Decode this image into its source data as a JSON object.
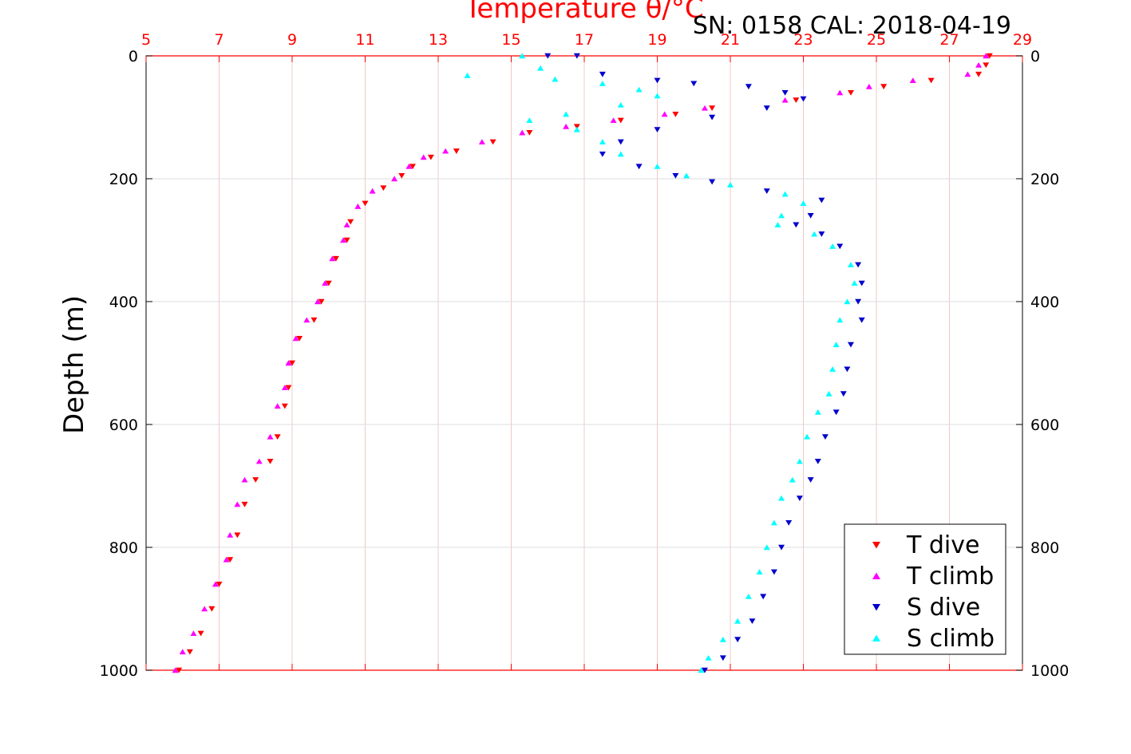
{
  "header": {
    "x_title": "Temperature θ/°C",
    "sn_cal": "SN: 0158  CAL: 2018-04-19"
  },
  "colors": {
    "T dive": "#ff0000",
    "T climb": "#ff00ff",
    "S dive": "#0000cc",
    "S climb": "#00ffff",
    "axis_top": "#ff0000"
  },
  "chart_data": {
    "type": "scatter",
    "title": "Temperature θ/°C",
    "xlabel": "Temperature θ/°C",
    "ylabel": "Depth (m)",
    "xlim": [
      5,
      29
    ],
    "ylim": [
      1000,
      0
    ],
    "xticks": [
      "5",
      "7",
      "9",
      "11",
      "13",
      "15",
      "17",
      "19",
      "21",
      "23",
      "25",
      "27",
      "29"
    ],
    "yticks": [
      "0",
      "200",
      "400",
      "600",
      "800",
      "1000"
    ],
    "grid": true,
    "legend_position": "bottom-right",
    "series": [
      {
        "name": "T dive",
        "marker": "triangle-down",
        "points": [
          [
            28.1,
            0
          ],
          [
            28.0,
            15
          ],
          [
            27.8,
            30
          ],
          [
            26.5,
            40
          ],
          [
            25.2,
            50
          ],
          [
            24.3,
            60
          ],
          [
            22.8,
            72
          ],
          [
            20.5,
            85
          ],
          [
            19.5,
            95
          ],
          [
            18.0,
            105
          ],
          [
            16.8,
            115
          ],
          [
            15.5,
            125
          ],
          [
            14.5,
            140
          ],
          [
            13.5,
            155
          ],
          [
            12.8,
            165
          ],
          [
            12.3,
            180
          ],
          [
            12.0,
            195
          ],
          [
            11.5,
            215
          ],
          [
            11.0,
            240
          ],
          [
            10.6,
            270
          ],
          [
            10.5,
            300
          ],
          [
            10.2,
            330
          ],
          [
            10.0,
            370
          ],
          [
            9.8,
            400
          ],
          [
            9.6,
            430
          ],
          [
            9.2,
            460
          ],
          [
            9.0,
            500
          ],
          [
            8.9,
            540
          ],
          [
            8.8,
            570
          ],
          [
            8.6,
            620
          ],
          [
            8.4,
            660
          ],
          [
            8.0,
            690
          ],
          [
            7.7,
            730
          ],
          [
            7.5,
            780
          ],
          [
            7.3,
            820
          ],
          [
            7.0,
            860
          ],
          [
            6.8,
            900
          ],
          [
            6.5,
            940
          ],
          [
            6.2,
            970
          ],
          [
            5.9,
            1000
          ]
        ]
      },
      {
        "name": "T climb",
        "marker": "triangle-up",
        "points": [
          [
            28.0,
            0
          ],
          [
            27.8,
            15
          ],
          [
            27.5,
            30
          ],
          [
            26.0,
            40
          ],
          [
            24.8,
            50
          ],
          [
            24.0,
            60
          ],
          [
            22.5,
            72
          ],
          [
            20.3,
            85
          ],
          [
            19.2,
            95
          ],
          [
            17.8,
            105
          ],
          [
            16.5,
            115
          ],
          [
            15.3,
            125
          ],
          [
            14.2,
            140
          ],
          [
            13.2,
            155
          ],
          [
            12.6,
            165
          ],
          [
            12.2,
            180
          ],
          [
            11.8,
            200
          ],
          [
            11.2,
            220
          ],
          [
            10.8,
            245
          ],
          [
            10.5,
            275
          ],
          [
            10.4,
            300
          ],
          [
            10.1,
            330
          ],
          [
            9.9,
            370
          ],
          [
            9.7,
            400
          ],
          [
            9.4,
            430
          ],
          [
            9.1,
            460
          ],
          [
            8.9,
            500
          ],
          [
            8.8,
            540
          ],
          [
            8.6,
            570
          ],
          [
            8.4,
            620
          ],
          [
            8.1,
            660
          ],
          [
            7.7,
            690
          ],
          [
            7.5,
            730
          ],
          [
            7.3,
            780
          ],
          [
            7.2,
            820
          ],
          [
            6.9,
            860
          ],
          [
            6.6,
            900
          ],
          [
            6.3,
            940
          ],
          [
            6.0,
            970
          ],
          [
            5.8,
            1000
          ]
        ]
      },
      {
        "name": "S dive",
        "marker": "triangle-down",
        "points": [
          [
            16.0,
            0
          ],
          [
            16.8,
            0
          ],
          [
            17.5,
            30
          ],
          [
            19.0,
            40
          ],
          [
            20.0,
            45
          ],
          [
            21.5,
            50
          ],
          [
            22.5,
            60
          ],
          [
            23.0,
            70
          ],
          [
            22.0,
            85
          ],
          [
            20.5,
            100
          ],
          [
            19.0,
            120
          ],
          [
            18.0,
            140
          ],
          [
            17.5,
            160
          ],
          [
            18.5,
            180
          ],
          [
            19.5,
            195
          ],
          [
            20.5,
            205
          ],
          [
            22.0,
            220
          ],
          [
            23.5,
            235
          ],
          [
            23.2,
            260
          ],
          [
            22.8,
            275
          ],
          [
            23.5,
            290
          ],
          [
            24.0,
            310
          ],
          [
            24.5,
            340
          ],
          [
            24.6,
            370
          ],
          [
            24.5,
            400
          ],
          [
            24.6,
            430
          ],
          [
            24.3,
            470
          ],
          [
            24.2,
            510
          ],
          [
            24.1,
            550
          ],
          [
            23.9,
            580
          ],
          [
            23.6,
            620
          ],
          [
            23.4,
            660
          ],
          [
            23.2,
            690
          ],
          [
            22.9,
            720
          ],
          [
            22.6,
            760
          ],
          [
            22.4,
            800
          ],
          [
            22.2,
            840
          ],
          [
            21.9,
            880
          ],
          [
            21.6,
            920
          ],
          [
            21.2,
            950
          ],
          [
            20.8,
            980
          ],
          [
            20.3,
            1000
          ]
        ]
      },
      {
        "name": "S climb",
        "marker": "triangle-up",
        "points": [
          [
            15.3,
            0
          ],
          [
            15.8,
            20
          ],
          [
            13.8,
            32
          ],
          [
            16.2,
            38
          ],
          [
            17.5,
            45
          ],
          [
            18.5,
            55
          ],
          [
            19.0,
            65
          ],
          [
            18.0,
            80
          ],
          [
            16.5,
            95
          ],
          [
            15.5,
            105
          ],
          [
            16.8,
            120
          ],
          [
            17.5,
            140
          ],
          [
            18.0,
            160
          ],
          [
            19.0,
            180
          ],
          [
            19.8,
            195
          ],
          [
            21.0,
            210
          ],
          [
            22.5,
            225
          ],
          [
            23.0,
            240
          ],
          [
            22.4,
            260
          ],
          [
            22.3,
            275
          ],
          [
            23.3,
            290
          ],
          [
            23.8,
            310
          ],
          [
            24.3,
            340
          ],
          [
            24.4,
            370
          ],
          [
            24.2,
            400
          ],
          [
            24.0,
            430
          ],
          [
            23.9,
            470
          ],
          [
            23.8,
            510
          ],
          [
            23.7,
            550
          ],
          [
            23.4,
            580
          ],
          [
            23.1,
            620
          ],
          [
            22.9,
            660
          ],
          [
            22.7,
            690
          ],
          [
            22.4,
            720
          ],
          [
            22.2,
            760
          ],
          [
            22.0,
            800
          ],
          [
            21.8,
            840
          ],
          [
            21.5,
            880
          ],
          [
            21.2,
            920
          ],
          [
            20.8,
            950
          ],
          [
            20.4,
            980
          ],
          [
            20.2,
            1000
          ]
        ]
      }
    ]
  }
}
